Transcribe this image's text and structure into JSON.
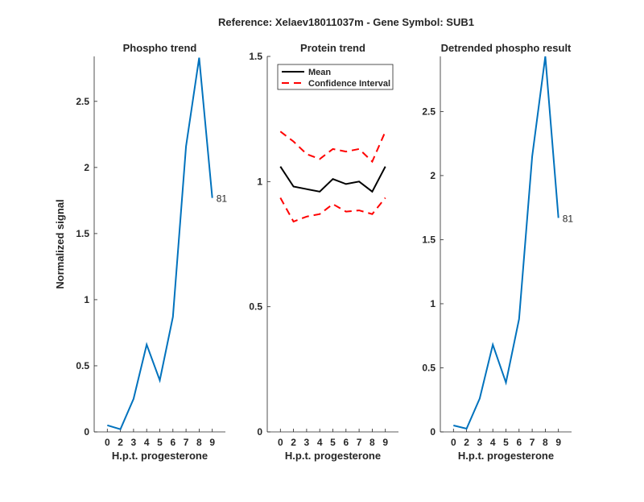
{
  "chart_data": {
    "suptitle": "Reference:  Xelaev18011037m - Gene Symbol:  SUB1",
    "panels": [
      {
        "type": "line",
        "title": "Phospho trend",
        "xlabel": "H.p.t. progesterone",
        "ylabel": "Normalized signal",
        "x_tick_labels": [
          "0",
          "2",
          "3",
          "4",
          "5",
          "6",
          "7",
          "8",
          "9"
        ],
        "ylim": [
          0,
          2.84
        ],
        "yticks": [
          0,
          0.5,
          1,
          1.5,
          2,
          2.5
        ],
        "ytick_labels": [
          "0",
          "0.5",
          "1",
          "1.5",
          "2",
          "2.5"
        ],
        "series": [
          {
            "name": "phospho",
            "color": "#0072BD",
            "style": "solid",
            "values": [
              0.05,
              0.02,
              0.25,
              0.66,
              0.39,
              0.87,
              2.16,
              2.83,
              1.77
            ]
          }
        ],
        "end_label": "81"
      },
      {
        "type": "line",
        "title": "Protein trend",
        "xlabel": "H.p.t. progesterone",
        "ylabel": "",
        "x_tick_labels": [
          "0",
          "2",
          "3",
          "4",
          "5",
          "6",
          "7",
          "8",
          "9"
        ],
        "ylim": [
          0,
          1.5
        ],
        "yticks": [
          0,
          0.5,
          1,
          1.5
        ],
        "ytick_labels": [
          "0",
          "0.5",
          "1",
          "1.5"
        ],
        "series": [
          {
            "name": "Mean",
            "color": "#000000",
            "style": "solid",
            "values": [
              1.06,
              0.98,
              0.97,
              0.96,
              1.01,
              0.99,
              1.0,
              0.96,
              1.06
            ]
          },
          {
            "name": "Confidence Interval",
            "color": "#FF0000",
            "style": "dashed",
            "values": [
              1.2,
              1.16,
              1.11,
              1.09,
              1.13,
              1.12,
              1.13,
              1.08,
              1.2
            ]
          },
          {
            "name": "Confidence Interval lower",
            "color": "#FF0000",
            "style": "dashed",
            "values": [
              0.935,
              0.84,
              0.86,
              0.87,
              0.91,
              0.88,
              0.885,
              0.87,
              0.935
            ]
          }
        ],
        "legend": {
          "position": "top-right",
          "entries": [
            "Mean",
            "Confidence Interval"
          ]
        }
      },
      {
        "type": "line",
        "title": "Detrended phospho result",
        "xlabel": "H.p.t. progesterone",
        "ylabel": "",
        "x_tick_labels": [
          "0",
          "2",
          "3",
          "4",
          "5",
          "6",
          "7",
          "8",
          "9"
        ],
        "ylim": [
          0,
          2.93
        ],
        "yticks": [
          0,
          0.5,
          1,
          1.5,
          2,
          2.5
        ],
        "ytick_labels": [
          "0",
          "0.5",
          "1",
          "1.5",
          "2",
          "2.5"
        ],
        "series": [
          {
            "name": "detrended",
            "color": "#0072BD",
            "style": "solid",
            "values": [
              0.05,
              0.025,
              0.26,
              0.68,
              0.385,
              0.88,
              2.15,
              2.93,
              1.67
            ]
          }
        ],
        "end_label": "81"
      }
    ]
  }
}
